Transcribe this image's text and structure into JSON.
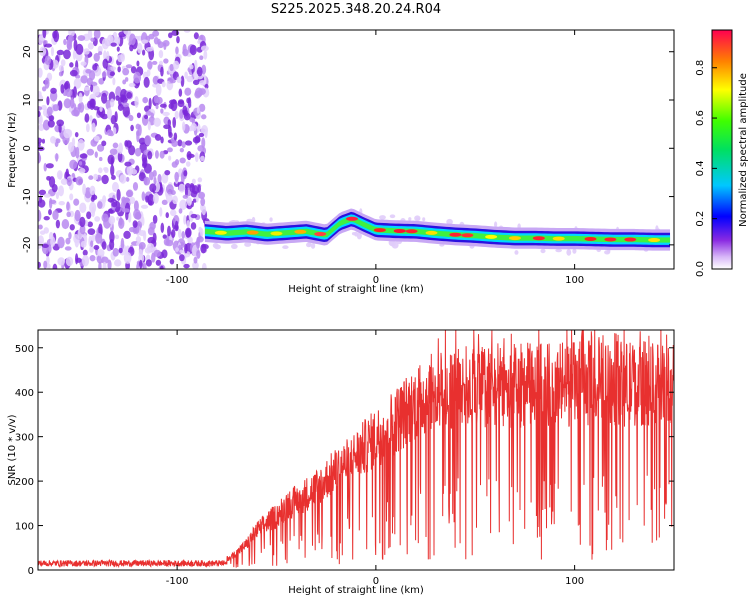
{
  "title": "S225.2025.348.20.24.R04",
  "chart_data": [
    {
      "type": "heatmap",
      "xlabel": "Height of straight line (km)",
      "ylabel": "Frequency (Hz)",
      "xlim": [
        -170,
        150
      ],
      "ylim": [
        -25,
        24.5
      ],
      "xticks": [
        -100,
        0,
        100
      ],
      "yticks": [
        -20,
        -10,
        0,
        10,
        20
      ],
      "ridge": [
        [
          -86,
          -17.2
        ],
        [
          -75,
          -17.6
        ],
        [
          -65,
          -17.3
        ],
        [
          -55,
          -17.8
        ],
        [
          -45,
          -17.5
        ],
        [
          -35,
          -17.2
        ],
        [
          -25,
          -18.0
        ],
        [
          -18,
          -15.5
        ],
        [
          -12,
          -14.6
        ],
        [
          -6,
          -15.8
        ],
        [
          0,
          -16.9
        ],
        [
          10,
          -17.1
        ],
        [
          20,
          -17.2
        ],
        [
          30,
          -17.6
        ],
        [
          40,
          -17.9
        ],
        [
          50,
          -18.1
        ],
        [
          60,
          -18.4
        ],
        [
          70,
          -18.6
        ],
        [
          80,
          -18.6
        ],
        [
          90,
          -18.7
        ],
        [
          100,
          -18.7
        ],
        [
          110,
          -18.8
        ],
        [
          120,
          -18.9
        ],
        [
          130,
          -18.9
        ],
        [
          140,
          -19.0
        ],
        [
          148,
          -19.0
        ]
      ],
      "colorbar": {
        "label": "Normalized spectral amplitude",
        "range": [
          0,
          0.95
        ],
        "ticks": [
          0.0,
          0.2,
          0.4,
          0.6,
          0.8
        ]
      },
      "grid": false
    },
    {
      "type": "line",
      "xlabel": "Height of straight line (km)",
      "ylabel": "SNR (10 * v/v)",
      "xlim": [
        -170,
        150
      ],
      "ylim": [
        0,
        540
      ],
      "xticks": [
        -100,
        0,
        100
      ],
      "yticks": [
        0,
        100,
        200,
        300,
        400,
        500
      ],
      "envelope": [
        [
          -170,
          15
        ],
        [
          -100,
          15
        ],
        [
          -85,
          18
        ],
        [
          -75,
          25
        ],
        [
          -70,
          40
        ],
        [
          -65,
          60
        ],
        [
          -60,
          90
        ],
        [
          -55,
          110
        ],
        [
          -50,
          125
        ],
        [
          -45,
          150
        ],
        [
          -40,
          160
        ],
        [
          -35,
          175
        ],
        [
          -30,
          190
        ],
        [
          -25,
          210
        ],
        [
          -20,
          230
        ],
        [
          -15,
          245
        ],
        [
          -10,
          265
        ],
        [
          -5,
          285
        ],
        [
          0,
          305
        ],
        [
          5,
          325
        ],
        [
          10,
          345
        ],
        [
          15,
          365
        ],
        [
          20,
          385
        ],
        [
          25,
          400
        ],
        [
          30,
          410
        ],
        [
          40,
          420
        ],
        [
          60,
          425
        ],
        [
          100,
          430
        ],
        [
          150,
          430
        ]
      ],
      "series": [
        {
          "color": "#e8302f"
        }
      ],
      "grid": false
    }
  ]
}
